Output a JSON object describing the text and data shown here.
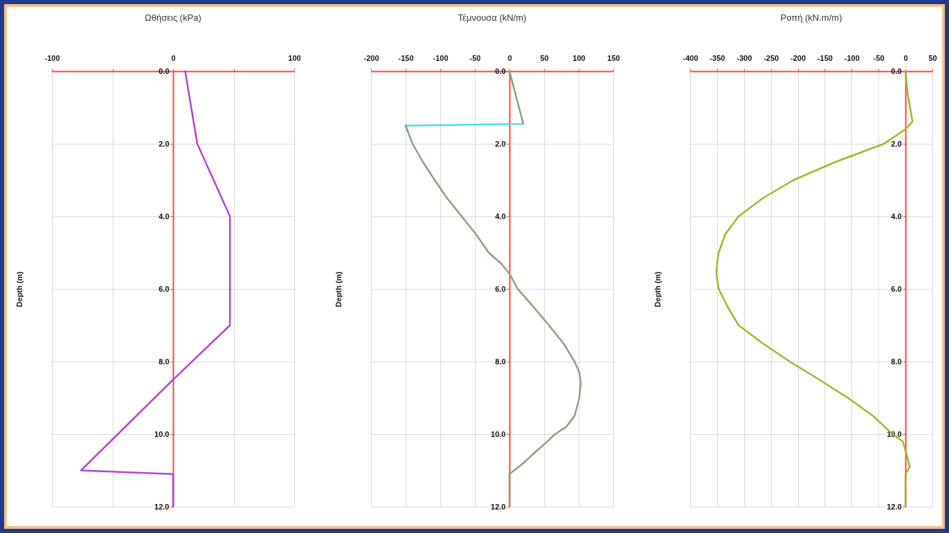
{
  "chart_data": [
    {
      "type": "line",
      "title": "Ωθήσεις (kPa)",
      "ylabel": "Depth (m)",
      "xlim": [
        -100,
        100
      ],
      "xticks": [
        -100,
        {
          "value": -50,
          "label": null
        },
        0,
        {
          "value": 50,
          "label": null
        },
        100
      ],
      "ylim": [
        12,
        0
      ],
      "yticks": [
        {
          "value": 0,
          "label": "0.0"
        },
        {
          "value": 2,
          "label": "2.0"
        },
        {
          "value": 4,
          "label": "4.0"
        },
        {
          "value": 6,
          "label": "6.0"
        },
        {
          "value": 8,
          "label": "8.0"
        },
        {
          "value": 10,
          "label": "10.0"
        },
        {
          "value": 12,
          "label": "12.0"
        }
      ],
      "grid": true,
      "series": [
        {
          "color": "#b044d8",
          "x": [
            10,
            20,
            47,
            47,
            0,
            -76,
            0,
            0
          ],
          "values": [
            0,
            2,
            4,
            7,
            8.5,
            11,
            11.1,
            12
          ]
        }
      ]
    },
    {
      "type": "line",
      "title": "Τέμνουσα (kN/m)",
      "ylabel": "Depth (m)",
      "xlim": [
        -200,
        150
      ],
      "xticks": [
        -200,
        -150,
        -100,
        -50,
        0,
        50,
        100,
        150
      ],
      "ylim": [
        12,
        0
      ],
      "yticks": [
        {
          "value": 0,
          "label": "0.0"
        },
        {
          "value": 2,
          "label": "2.0"
        },
        {
          "value": 4,
          "label": "4.0"
        },
        {
          "value": 6,
          "label": "6.0"
        },
        {
          "value": 8,
          "label": "8.0"
        },
        {
          "value": 10,
          "label": "10.0"
        },
        {
          "value": 12,
          "label": "12.0"
        }
      ],
      "grid": true,
      "series": [
        {
          "color": "#8aa07c",
          "x": [
            0,
            20
          ],
          "values": [
            0,
            1.45
          ]
        },
        {
          "color": "#40e0e8",
          "x": [
            20,
            -150
          ],
          "values": [
            1.45,
            1.5
          ]
        },
        {
          "color": "#8aa07c",
          "x": [
            -150,
            -140,
            -125,
            -108,
            -90,
            -69,
            -48,
            -30,
            -12,
            0,
            12,
            35,
            57,
            78,
            94,
            101,
            103,
            101,
            94,
            82,
            66,
            52,
            37,
            20,
            0,
            0
          ],
          "values": [
            1.5,
            2,
            2.5,
            3,
            3.5,
            4,
            4.5,
            5,
            5.3,
            5.58,
            6,
            6.5,
            7,
            7.5,
            8,
            8.3,
            8.6,
            9,
            9.5,
            9.8,
            10,
            10.25,
            10.5,
            10.8,
            11.1,
            12
          ]
        }
      ]
    },
    {
      "type": "line",
      "title": "Ροπή (kN.m/m)",
      "ylabel": "Depth (m)",
      "xlim": [
        -400,
        50
      ],
      "xticks": [
        -400,
        -350,
        -300,
        -250,
        -200,
        -150,
        -100,
        -50,
        0,
        50
      ],
      "ylim": [
        12,
        0
      ],
      "yticks": [
        {
          "value": 0,
          "label": "0.0"
        },
        {
          "value": 2,
          "label": "2.0"
        },
        {
          "value": 4,
          "label": "4.0"
        },
        {
          "value": 6,
          "label": "6.0"
        },
        {
          "value": 8,
          "label": "8.0"
        },
        {
          "value": 10,
          "label": "10.0"
        },
        {
          "value": 12,
          "label": "12.0"
        }
      ],
      "grid": true,
      "series": [
        {
          "color": "#9cb82a",
          "x": [
            0,
            5,
            13,
            0,
            -40,
            -130,
            -208,
            -265,
            -310,
            -335,
            -347,
            -350,
            -351,
            -347,
            -330,
            -310,
            -265,
            -215,
            -160,
            -107,
            -60,
            -24,
            -5,
            1,
            8,
            0,
            0
          ],
          "values": [
            0,
            0.7,
            1.39,
            1.6,
            2,
            2.5,
            3,
            3.5,
            4,
            4.5,
            5,
            5.3,
            5.6,
            6,
            6.5,
            7,
            7.5,
            8,
            8.5,
            9,
            9.5,
            10,
            10.2,
            10.5,
            10.9,
            11.1,
            12
          ]
        }
      ]
    }
  ]
}
